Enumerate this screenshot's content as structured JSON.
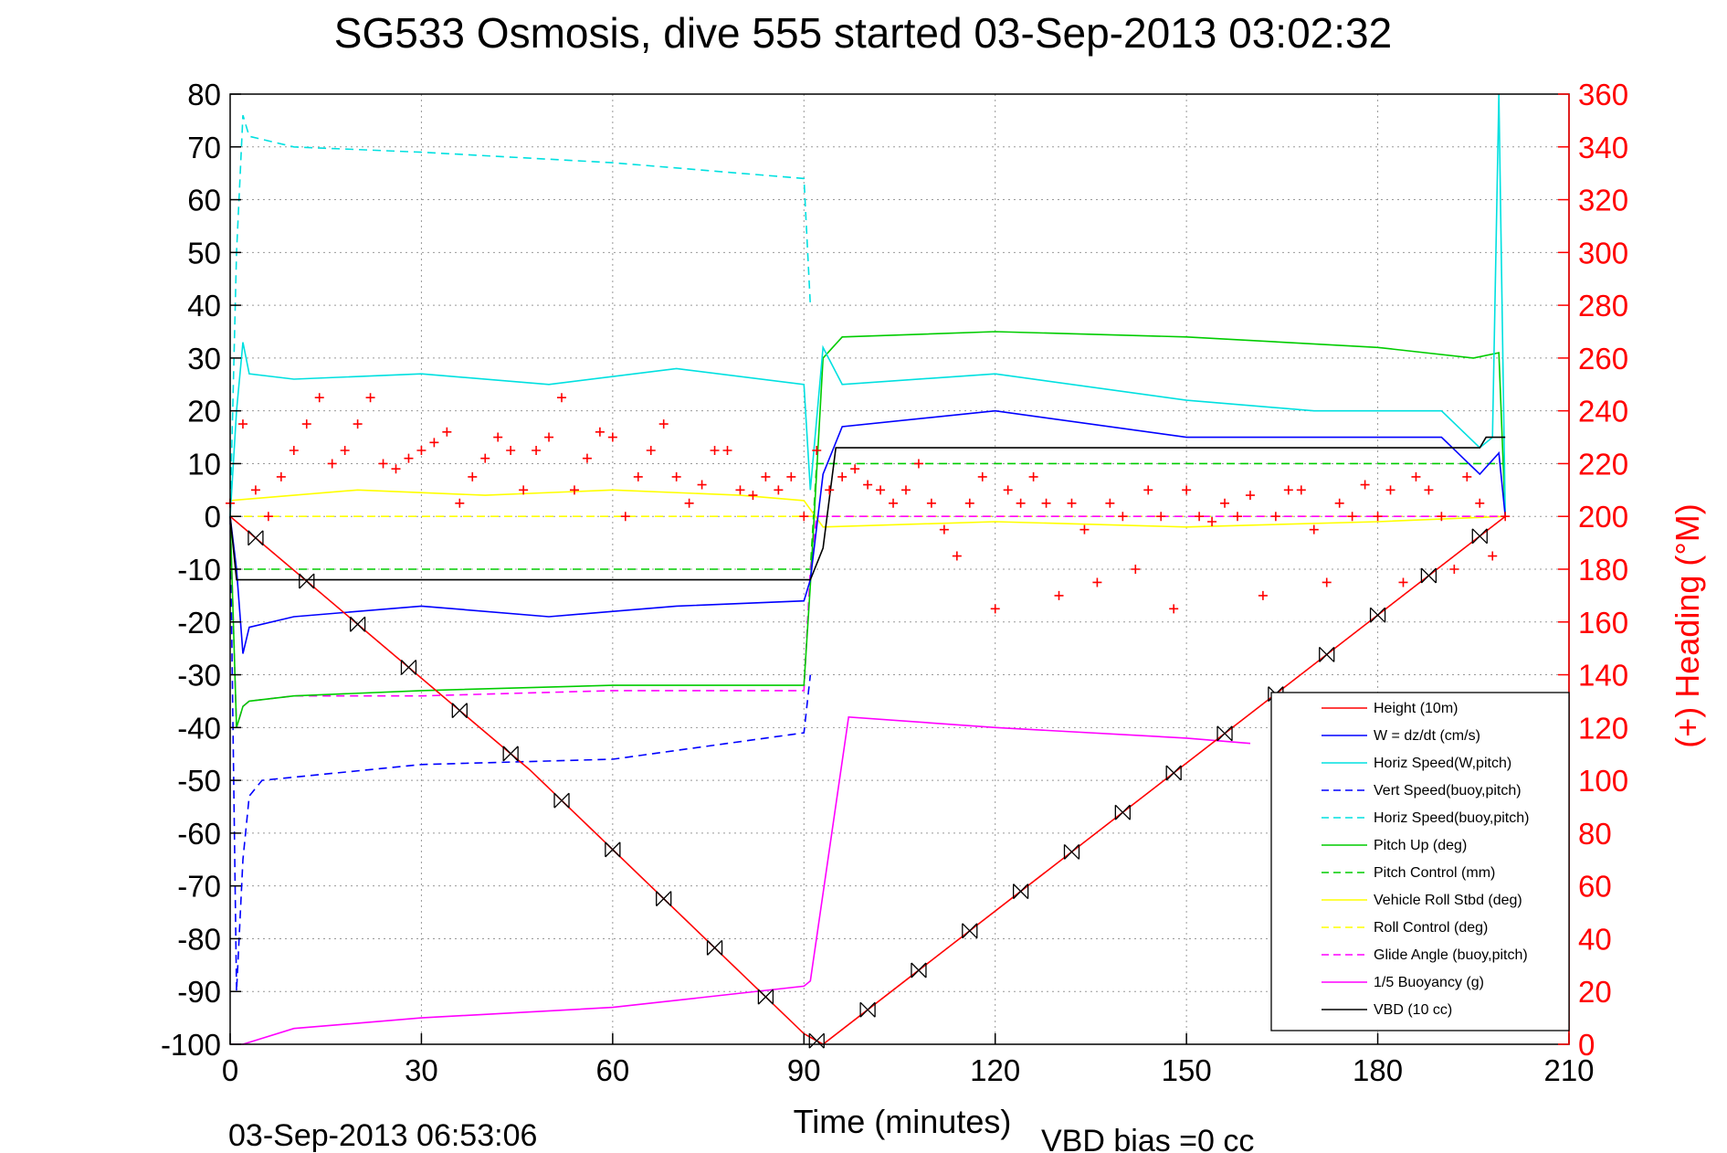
{
  "chart_data": {
    "type": "line",
    "title": "SG533 Osmosis, dive 555 started 03-Sep-2013 03:02:32",
    "xlabel": "Time (minutes)",
    "ylabel": "",
    "y2label": "(+) Heading (°M)",
    "xlim": [
      0,
      210
    ],
    "ylim": [
      -100,
      80
    ],
    "y2lim": [
      0,
      360
    ],
    "xticks": [
      "0",
      "30",
      "60",
      "90",
      "120",
      "150",
      "180",
      "210"
    ],
    "yticks": [
      "80",
      "70",
      "60",
      "50",
      "40",
      "30",
      "20",
      "10",
      "0",
      "-10",
      "-20",
      "-30",
      "-40",
      "-50",
      "-60",
      "-70",
      "-80",
      "-90",
      "-100"
    ],
    "y2ticks": [
      "360",
      "340",
      "320",
      "300",
      "280",
      "260",
      "240",
      "220",
      "200",
      "180",
      "160",
      "140",
      "120",
      "100",
      "80",
      "60",
      "40",
      "20",
      "0"
    ],
    "grid": true,
    "legend_position": "bottom-right",
    "footer_left": "03-Sep-2013 06:53:06",
    "footer_right": "VBD bias =0 cc",
    "series": [
      {
        "name": "Height (10m)",
        "color": "#ff0000",
        "style": "solid",
        "x": [
          0,
          47,
          90,
          93,
          200
        ],
        "y": [
          0,
          -48,
          -98,
          -100,
          0
        ]
      },
      {
        "name": "W = dz/dt (cm/s)",
        "color": "#0000ff",
        "style": "solid",
        "x": [
          0,
          1,
          2,
          3,
          10,
          30,
          50,
          70,
          90,
          91,
          93,
          96,
          120,
          150,
          170,
          190,
          196,
          199,
          200
        ],
        "y": [
          0,
          -10,
          -26,
          -21,
          -19,
          -17,
          -19,
          -17,
          -16,
          -12,
          8,
          17,
          20,
          15,
          15,
          15,
          8,
          12,
          0
        ]
      },
      {
        "name": "Horiz Speed(W,pitch)",
        "color": "#00e0e0",
        "style": "solid",
        "x": [
          0,
          1,
          2,
          3,
          10,
          30,
          50,
          70,
          90,
          91,
          93,
          96,
          120,
          150,
          170,
          190,
          196,
          198,
          199,
          200
        ],
        "y": [
          0,
          20,
          33,
          27,
          26,
          27,
          25,
          28,
          25,
          5,
          32,
          25,
          27,
          22,
          20,
          20,
          13,
          15,
          80,
          0
        ]
      },
      {
        "name": "Vert Speed(buoy,pitch)",
        "color": "#0000ff",
        "style": "dashed",
        "x": [
          0,
          1,
          2,
          3,
          5,
          30,
          60,
          90,
          91
        ],
        "y": [
          0,
          -90,
          -65,
          -53,
          -50,
          -47,
          -46,
          -41,
          -30
        ]
      },
      {
        "name": "Horiz Speed(buoy,pitch)",
        "color": "#00e0e0",
        "style": "dashed",
        "x": [
          0,
          1,
          2,
          3,
          10,
          30,
          60,
          90,
          91
        ],
        "y": [
          0,
          50,
          76,
          72,
          70,
          69,
          67,
          64,
          40
        ]
      },
      {
        "name": "Pitch Up (deg)",
        "color": "#00cc00",
        "style": "solid",
        "x": [
          0,
          1,
          2,
          3,
          10,
          30,
          60,
          90,
          91,
          93,
          96,
          120,
          150,
          180,
          195,
          199,
          200
        ],
        "y": [
          0,
          -40,
          -36,
          -35,
          -34,
          -33,
          -32,
          -32,
          -13,
          30,
          34,
          35,
          34,
          32,
          30,
          31,
          0
        ]
      },
      {
        "name": "Pitch Control (mm)",
        "color": "#00cc00",
        "style": "dashed",
        "x": [
          0,
          2,
          91,
          92,
          200
        ],
        "y": [
          -10,
          -10,
          -10,
          10,
          10
        ]
      },
      {
        "name": "Vehicle Roll Stbd (deg)",
        "color": "#ffff00",
        "style": "solid",
        "x": [
          0,
          20,
          40,
          60,
          80,
          90,
          93,
          120,
          150,
          180,
          200
        ],
        "y": [
          3,
          5,
          4,
          5,
          4,
          3,
          -2,
          -1,
          -2,
          -1,
          0
        ]
      },
      {
        "name": "Roll Control (deg)",
        "color": "#ffff00",
        "style": "dashed",
        "x": [
          0,
          90,
          91,
          200
        ],
        "y": [
          0,
          0,
          0,
          0
        ]
      },
      {
        "name": "Glide Angle (buoy,pitch)",
        "color": "#ff00ff",
        "style": "dashed",
        "x": [
          0,
          1,
          2,
          3,
          10,
          30,
          60,
          90,
          91,
          92,
          200
        ],
        "y": [
          0,
          -40,
          -36,
          -35,
          -34,
          -34,
          -33,
          -33,
          -10,
          0,
          0
        ]
      },
      {
        "name": "1/5 Buoyancy (g)",
        "color": "#ff00ff",
        "style": "solid",
        "x": [
          0,
          2,
          10,
          30,
          60,
          90,
          91,
          97,
          120,
          150,
          160
        ],
        "y": [
          -100,
          -100,
          -97,
          -95,
          -93,
          -89,
          -88,
          -38,
          -40,
          -42,
          -43
        ]
      },
      {
        "name": "VBD (10 cc)",
        "color": "#000000",
        "style": "solid",
        "x": [
          0,
          1,
          2,
          91,
          93,
          95,
          196,
          197,
          200
        ],
        "y": [
          0,
          -12,
          -12,
          -12,
          -6,
          13,
          13,
          15,
          15
        ]
      }
    ],
    "heading_series": {
      "name": "Heading (deg)",
      "color": "#ff0000",
      "marker": "+",
      "axis": "right",
      "x": [
        0,
        2,
        4,
        6,
        8,
        10,
        12,
        14,
        16,
        18,
        20,
        22,
        24,
        26,
        28,
        30,
        32,
        34,
        36,
        38,
        40,
        42,
        44,
        46,
        48,
        50,
        52,
        54,
        56,
        58,
        60,
        62,
        64,
        66,
        68,
        70,
        72,
        74,
        76,
        78,
        80,
        82,
        84,
        86,
        88,
        90,
        92,
        94,
        96,
        98,
        100,
        102,
        104,
        106,
        108,
        110,
        112,
        114,
        116,
        118,
        120,
        122,
        124,
        126,
        128,
        130,
        132,
        134,
        136,
        138,
        140,
        142,
        144,
        146,
        148,
        150,
        152,
        154,
        156,
        158,
        160,
        162,
        164,
        166,
        168,
        170,
        172,
        174,
        176,
        178,
        180,
        182,
        184,
        186,
        188,
        190,
        192,
        194,
        196,
        198,
        200
      ],
      "y": [
        205,
        235,
        210,
        200,
        215,
        225,
        235,
        245,
        220,
        225,
        235,
        245,
        220,
        218,
        222,
        225,
        228,
        232,
        205,
        215,
        222,
        230,
        225,
        210,
        225,
        230,
        245,
        210,
        222,
        232,
        230,
        200,
        215,
        225,
        235,
        215,
        205,
        212,
        225,
        225,
        210,
        208,
        215,
        210,
        215,
        200,
        225,
        210,
        215,
        218,
        212,
        210,
        205,
        210,
        220,
        205,
        195,
        185,
        205,
        215,
        165,
        210,
        205,
        215,
        205,
        170,
        205,
        195,
        175,
        205,
        200,
        180,
        210,
        200,
        165,
        210,
        200,
        198,
        205,
        200,
        208,
        170,
        200,
        210,
        210,
        195,
        175,
        205,
        200,
        212,
        200,
        210,
        175,
        215,
        210,
        200,
        180,
        215,
        205,
        185,
        200
      ]
    }
  }
}
